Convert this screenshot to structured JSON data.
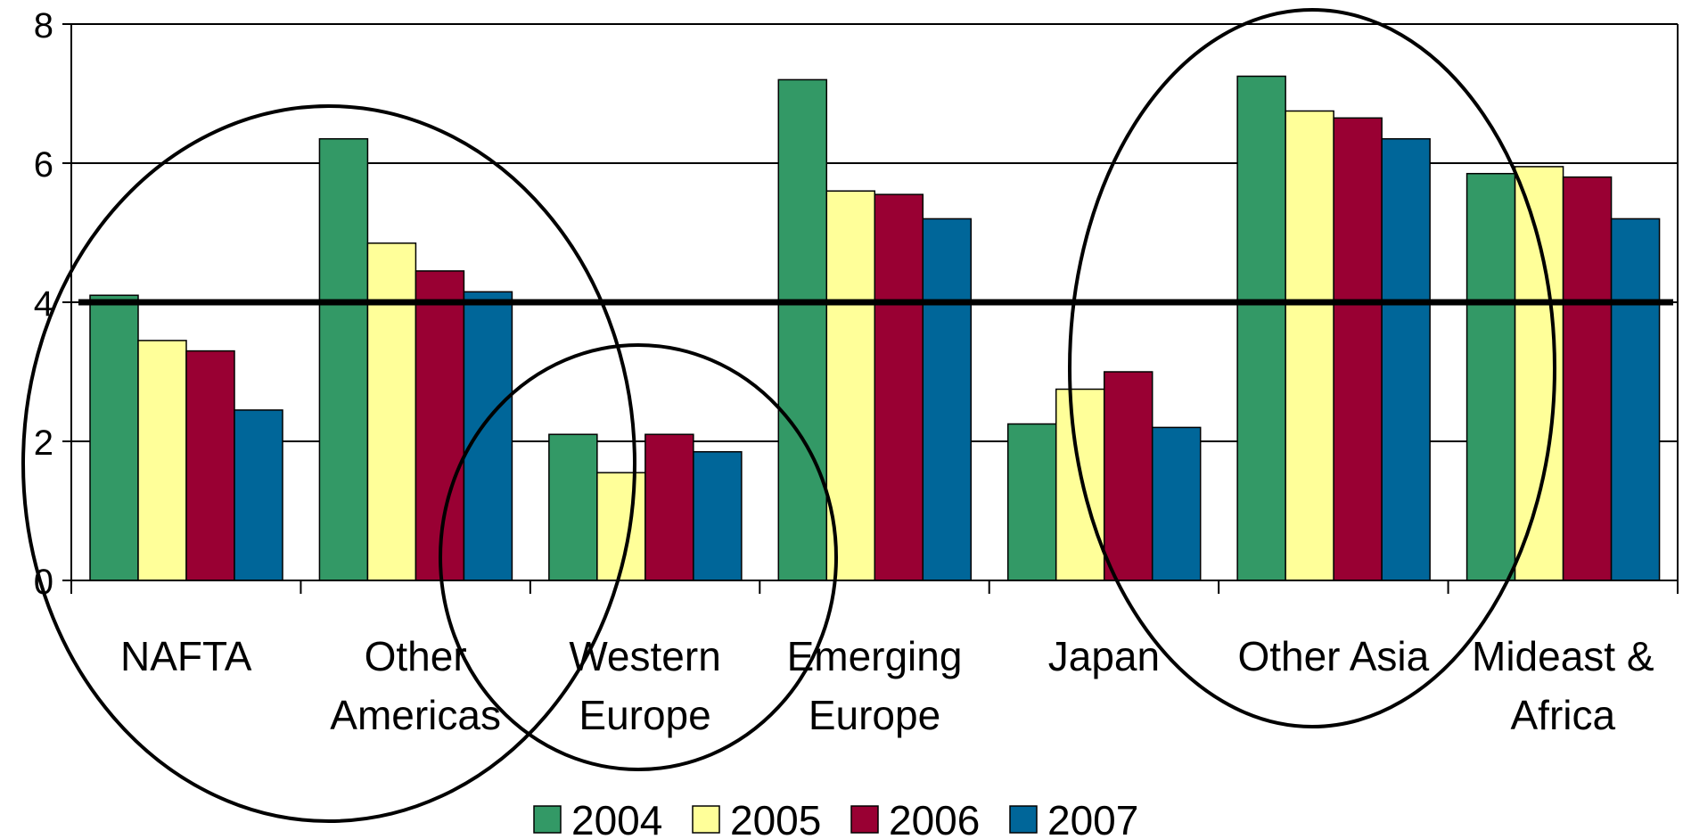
{
  "chart_data": {
    "type": "bar",
    "categories": [
      "NAFTA",
      "Other Americas",
      "Western Europe",
      "Emerging Europe",
      "Japan",
      "Other Asia",
      "Mideast & Africa"
    ],
    "category_label_lines": [
      [
        "NAFTA"
      ],
      [
        "Other",
        "Americas"
      ],
      [
        "Western",
        "Europe"
      ],
      [
        "Emerging",
        "Europe"
      ],
      [
        "Japan"
      ],
      [
        "Other Asia"
      ],
      [
        "Mideast &",
        "Africa"
      ]
    ],
    "series": [
      {
        "name": "2004",
        "color": "#339966",
        "values": [
          4.1,
          6.35,
          2.1,
          7.2,
          2.25,
          7.25,
          5.85
        ]
      },
      {
        "name": "2005",
        "color": "#FFFF99",
        "values": [
          3.45,
          4.85,
          1.55,
          5.6,
          2.75,
          6.75,
          5.95
        ]
      },
      {
        "name": "2006",
        "color": "#990033",
        "values": [
          3.3,
          4.45,
          2.1,
          5.55,
          3.0,
          6.65,
          5.8
        ]
      },
      {
        "name": "2007",
        "color": "#006699",
        "values": [
          2.45,
          4.15,
          1.85,
          5.2,
          2.2,
          6.35,
          5.2
        ]
      }
    ],
    "yticks": [
      "0",
      "2",
      "4",
      "6",
      "8"
    ],
    "ylim": [
      0,
      8
    ],
    "reference_line": 4,
    "grid": true,
    "legend_position": "bottom",
    "title": "",
    "xlabel": "",
    "ylabel": ""
  }
}
